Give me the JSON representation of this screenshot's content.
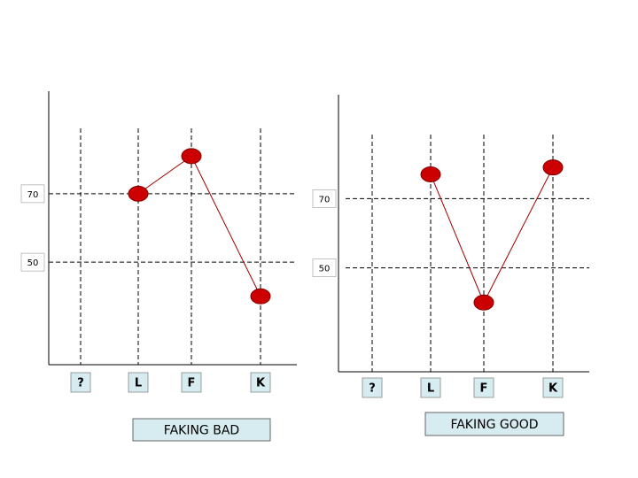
{
  "chart_data": [
    {
      "type": "line",
      "title": "FAKING BAD",
      "categories": [
        "?",
        "L",
        "F",
        "K"
      ],
      "series": [
        {
          "color": "#cc0000",
          "values": [
            null,
            70,
            81,
            40
          ]
        }
      ],
      "ylim": [
        20,
        100
      ],
      "yticks": [
        50,
        70
      ],
      "grid": true
    },
    {
      "type": "line",
      "title": "FAKING GOOD",
      "categories": [
        "?",
        "L",
        "F",
        "K"
      ],
      "series": [
        {
          "color": "#cc0000",
          "values": [
            null,
            77,
            40,
            79
          ]
        }
      ],
      "ylim": [
        20,
        100
      ],
      "yticks": [
        50,
        70
      ],
      "grid": true
    }
  ]
}
